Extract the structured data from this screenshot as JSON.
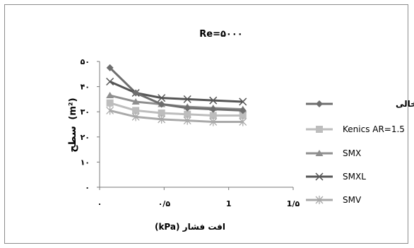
{
  "chart_data": {
    "type": "line",
    "title": "Re=۵۰۰۰",
    "xlabel": "افت فشار (kPa)",
    "ylabel_text": "سطح",
    "ylabel_unit": "(m²)",
    "xlim": [
      0,
      1.5
    ],
    "ylim": [
      0,
      50
    ],
    "xticks": [
      {
        "value": 0,
        "label": "۰"
      },
      {
        "value": 0.5,
        "label": "۰/۵"
      },
      {
        "value": 1,
        "label": "1"
      },
      {
        "value": 1.5,
        "label": "1/۵"
      }
    ],
    "yticks": [
      {
        "value": 0,
        "label": "۰"
      },
      {
        "value": 10,
        "label": "۱۰"
      },
      {
        "value": 20,
        "label": "۲۰"
      },
      {
        "value": 30,
        "label": "۳۰"
      },
      {
        "value": 40,
        "label": "۴۰"
      },
      {
        "value": 50,
        "label": "۵۰"
      }
    ],
    "grid": false,
    "legend_position": "right",
    "series": [
      {
        "name": "لولهٔ خالی",
        "marker": "diamond",
        "color": "#6e6e6e",
        "x": [
          0.08,
          0.28,
          0.48,
          0.68,
          0.88,
          1.11
        ],
        "y": [
          47.5,
          37.5,
          33.0,
          31.5,
          31.0,
          30.5
        ]
      },
      {
        "name": "Kenics AR=1.5",
        "marker": "square",
        "color": "#bdbdbd",
        "x": [
          0.08,
          0.28,
          0.48,
          0.68,
          0.88,
          1.11
        ],
        "y": [
          33.5,
          30.5,
          29.5,
          29.0,
          28.5,
          28.5
        ]
      },
      {
        "name": "SMX",
        "marker": "triangle",
        "color": "#8f8f8f",
        "x": [
          0.08,
          0.28,
          0.48,
          0.68,
          0.88,
          1.11
        ],
        "y": [
          36.5,
          34.0,
          33.0,
          32.0,
          31.5,
          31.0
        ]
      },
      {
        "name": "SMXL",
        "marker": "x",
        "color": "#555555",
        "x": [
          0.08,
          0.28,
          0.48,
          0.68,
          0.88,
          1.11
        ],
        "y": [
          42.0,
          37.5,
          35.5,
          35.0,
          34.5,
          34.0
        ]
      },
      {
        "name": "SMV",
        "marker": "star",
        "color": "#a9a9a9",
        "x": [
          0.08,
          0.28,
          0.48,
          0.68,
          0.88,
          1.11
        ],
        "y": [
          30.5,
          28.0,
          27.0,
          26.5,
          26.0,
          26.0
        ]
      }
    ]
  }
}
